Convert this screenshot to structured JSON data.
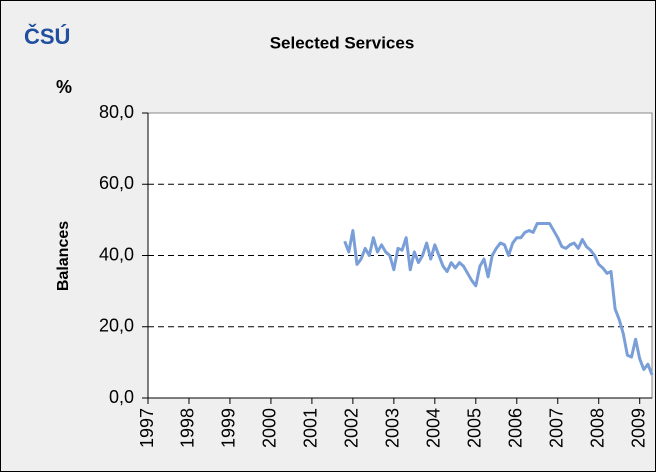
{
  "chart_data": {
    "type": "line",
    "logo": "ČSÚ",
    "title": "Selected Services",
    "y_unit": "%",
    "ylabel": "Balances",
    "x": [
      2001.8,
      2001.9,
      2002.0,
      2002.1,
      2002.2,
      2002.3,
      2002.4,
      2002.5,
      2002.6,
      2002.7,
      2002.8,
      2002.9,
      2003.0,
      2003.1,
      2003.2,
      2003.3,
      2003.4,
      2003.5,
      2003.6,
      2003.7,
      2003.8,
      2003.9,
      2004.0,
      2004.1,
      2004.2,
      2004.3,
      2004.4,
      2004.5,
      2004.6,
      2004.7,
      2004.8,
      2004.9,
      2005.0,
      2005.1,
      2005.2,
      2005.3,
      2005.4,
      2005.5,
      2005.6,
      2005.7,
      2005.8,
      2005.9,
      2006.0,
      2006.1,
      2006.2,
      2006.3,
      2006.4,
      2006.5,
      2006.6,
      2006.7,
      2006.8,
      2006.9,
      2007.0,
      2007.1,
      2007.2,
      2007.3,
      2007.4,
      2007.5,
      2007.6,
      2007.7,
      2007.8,
      2007.9,
      2008.0,
      2008.1,
      2008.2,
      2008.3,
      2008.4,
      2008.5,
      2008.6,
      2008.7,
      2008.8,
      2008.9,
      2009.0,
      2009.1,
      2009.2,
      2009.3
    ],
    "series": [
      {
        "name": "Balances",
        "color": "#7a9fd8",
        "values": [
          44,
          41,
          47,
          37.5,
          39,
          42,
          40,
          45,
          41,
          43,
          41,
          40,
          36,
          42,
          41.5,
          45,
          36,
          41,
          38,
          40,
          43.5,
          39,
          43,
          40,
          37,
          35.5,
          38,
          36.5,
          38,
          37,
          35,
          33,
          31.5,
          37,
          39,
          34,
          40,
          42,
          43.5,
          43,
          40,
          43.5,
          45,
          45,
          46.5,
          47,
          46.5,
          49,
          49,
          49,
          49,
          47,
          45,
          42.5,
          42,
          43,
          43.5,
          42,
          44.5,
          42.5,
          41.5,
          40,
          37.5,
          36.5,
          35,
          35.5,
          25,
          22,
          18,
          12,
          11.5,
          16.5,
          11,
          8,
          9.5,
          6.5
        ]
      }
    ],
    "xlim": [
      1997,
      2009.3
    ],
    "xticks": [
      1997,
      1998,
      1999,
      2000,
      2001,
      2002,
      2003,
      2004,
      2005,
      2006,
      2007,
      2008,
      2009
    ],
    "ylim": [
      0,
      80
    ],
    "yticks": [
      {
        "value": 0,
        "label": "0,0"
      },
      {
        "value": 20,
        "label": "20,0"
      },
      {
        "value": 40,
        "label": "40,0"
      },
      {
        "value": 60,
        "label": "60,0"
      },
      {
        "value": 80,
        "label": "80,0"
      }
    ],
    "grid": true
  }
}
